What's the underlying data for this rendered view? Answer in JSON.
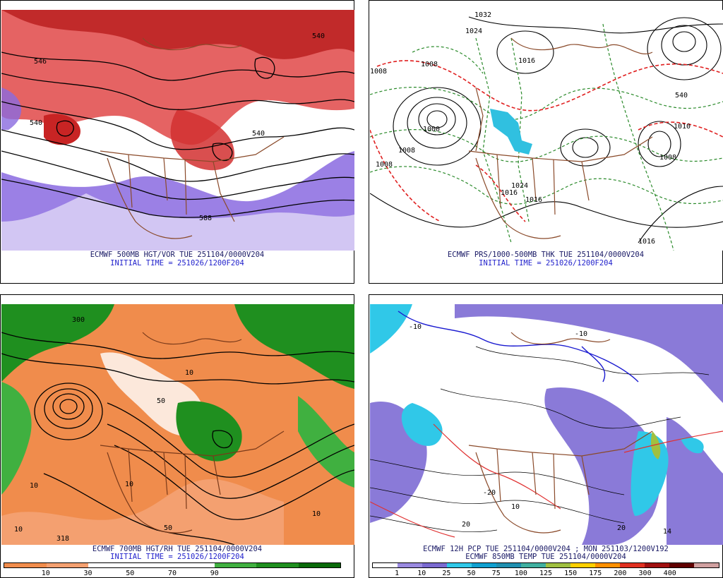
{
  "panels": {
    "tl": {
      "caption": "ECMWF 500MB HGT/VOR TUE 251104/0000V204",
      "initial": "INITIAL TIME = 251026/1200F204",
      "labels": [
        "540",
        "540",
        "588",
        "546",
        "540"
      ]
    },
    "tr": {
      "caption": "ECMWF PRS/1000-500MB THK TUE 251104/0000V204",
      "initial": "INITIAL TIME = 251026/1200F204",
      "labels": [
        "1032",
        "1024",
        "1008",
        "1000",
        "1008",
        "1016",
        "1024",
        "1016",
        "1016",
        "540",
        "1008",
        "1008",
        "1008",
        "1010",
        "1016"
      ]
    },
    "bl": {
      "caption": "ECMWF 700MB HGT/RH TUE 251104/0000V204",
      "initial": "INITIAL TIME = 251026/1200F204",
      "labels": [
        "10",
        "10",
        "318",
        "10",
        "50",
        "10",
        "10",
        "50",
        "300"
      ],
      "colorbar": {
        "colors": [
          "#f08c4c",
          "#f4a070",
          "#ffffff",
          "#ffffff",
          "#ffffff",
          "#40b040",
          "#1f8f1f",
          "#0a6a0a"
        ],
        "ticks": [
          "10",
          "30",
          "50",
          "70",
          "90"
        ]
      }
    },
    "br": {
      "caption": "ECMWF 12H PCP TUE 251104/0000V204 ; MON 251103/1200V192",
      "initial": "ECMWF 850MB TEMP TUE 251104/0000V204",
      "labels": [
        "-10",
        "-10",
        "-20",
        "20",
        "10",
        "20",
        "14"
      ],
      "colorbar": {
        "colors": [
          "#ffffff",
          "#9a8ae0",
          "#7a6ad0",
          "#30c8e8",
          "#10a0d0",
          "#2090b0",
          "#40b0a0",
          "#a0c040",
          "#ffd000",
          "#ff9000",
          "#e03020",
          "#a01010",
          "#600000",
          "#d0a0a0"
        ],
        "ticks": [
          "1",
          "10",
          "25",
          "50",
          "75",
          "100",
          "125",
          "150",
          "175",
          "200",
          "300",
          "400"
        ]
      }
    }
  }
}
